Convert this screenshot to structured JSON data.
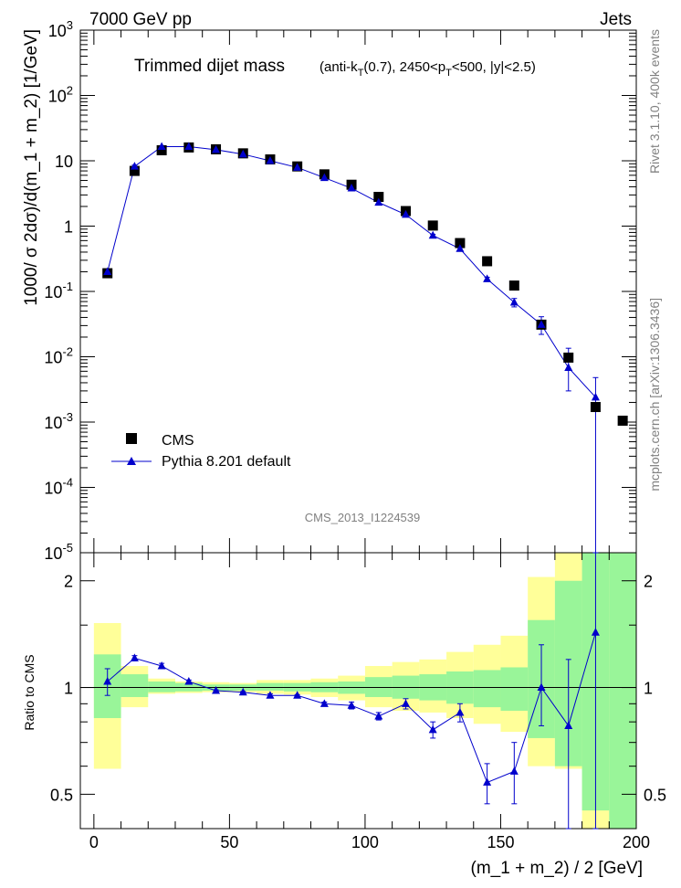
{
  "header": {
    "left": "7000 GeV pp",
    "right": "Jets"
  },
  "title": {
    "main": "Trimmed dijet mass",
    "cuts": "(anti-kT(0.7), 2450<pT<500, |y|<2.5)"
  },
  "side": {
    "rivet": "Rivet 3.1.10,  400k events",
    "mcplots": "mcplots.cern.ch [arXiv:1306.3436]"
  },
  "watermark": "CMS_2013_I1224539",
  "legend": {
    "data": "CMS",
    "mc": "Pythia 8.201 default"
  },
  "colors": {
    "mc": "#0000cc",
    "data": "#000000",
    "band_inner": "#99f599",
    "band_outer": "#ffff99"
  },
  "chart_data": [
    {
      "type": "scatter",
      "panel": "main",
      "ylabel": "1000/ σ 2dσ)/d(m_1 + m_2) [1/GeV]",
      "yscale": "log",
      "xlim": [
        -5,
        200
      ],
      "ylim": [
        1e-05,
        1000
      ],
      "y_tick_labels": [
        "10^-5",
        "10^-4",
        "10^-3",
        "10^-2",
        "10^-1",
        "1",
        "10",
        "10^2",
        "10^3"
      ],
      "x": [
        5,
        15,
        25,
        35,
        45,
        55,
        65,
        75,
        85,
        95,
        105,
        115,
        125,
        135,
        145,
        155,
        165,
        175,
        185,
        195
      ],
      "series": [
        {
          "name": "CMS",
          "values": [
            0.19,
            7.0,
            14.5,
            16.0,
            15.0,
            13.0,
            10.5,
            8.2,
            6.2,
            4.3,
            2.8,
            1.7,
            1.02,
            0.55,
            0.29,
            0.123,
            0.031,
            0.0097,
            0.0017,
            0.00105
          ]
        },
        {
          "name": "Pythia 8.201 default",
          "values": [
            0.2,
            8.2,
            16.5,
            16.5,
            14.8,
            12.6,
            10.0,
            7.9,
            5.5,
            3.8,
            2.3,
            1.5,
            0.72,
            0.45,
            0.155,
            0.068,
            0.031,
            0.0068,
            0.0024
          ],
          "err_low": [
            0.19,
            7.8,
            16.0,
            16.2,
            14.6,
            12.4,
            9.9,
            7.8,
            5.4,
            3.7,
            2.2,
            1.45,
            0.69,
            0.42,
            0.145,
            0.058,
            0.022,
            0.003,
            1e-06
          ],
          "err_high": [
            0.21,
            8.6,
            17.0,
            16.8,
            15.0,
            12.8,
            10.1,
            8.0,
            5.6,
            3.9,
            2.4,
            1.55,
            0.75,
            0.48,
            0.165,
            0.078,
            0.041,
            0.0135,
            0.0048
          ]
        }
      ]
    },
    {
      "type": "scatter",
      "panel": "ratio",
      "xlabel": "(m_1 + m_2) / 2 [GeV]",
      "ylabel": "Ratio to CMS",
      "xlim": [
        -5,
        200
      ],
      "ylim": [
        0.4,
        2.4
      ],
      "x_ticks": [
        0,
        50,
        100,
        150,
        200
      ],
      "y_ticks": [
        0.5,
        1,
        2
      ],
      "bins": [
        [
          0,
          10
        ],
        [
          10,
          20
        ],
        [
          20,
          30
        ],
        [
          30,
          40
        ],
        [
          40,
          50
        ],
        [
          50,
          60
        ],
        [
          60,
          70
        ],
        [
          70,
          80
        ],
        [
          80,
          90
        ],
        [
          90,
          100
        ],
        [
          100,
          110
        ],
        [
          110,
          120
        ],
        [
          120,
          130
        ],
        [
          130,
          140
        ],
        [
          140,
          150
        ],
        [
          150,
          160
        ],
        [
          160,
          170
        ],
        [
          170,
          180
        ],
        [
          180,
          190
        ],
        [
          190,
          200
        ]
      ],
      "band_inner": [
        [
          0.82,
          1.24
        ],
        [
          0.94,
          1.09
        ],
        [
          0.97,
          1.04
        ],
        [
          0.975,
          1.03
        ],
        [
          0.98,
          1.02
        ],
        [
          0.98,
          1.02
        ],
        [
          0.98,
          1.03
        ],
        [
          0.975,
          1.03
        ],
        [
          0.97,
          1.035
        ],
        [
          0.96,
          1.04
        ],
        [
          0.94,
          1.07
        ],
        [
          0.93,
          1.08
        ],
        [
          0.92,
          1.09
        ],
        [
          0.9,
          1.11
        ],
        [
          0.88,
          1.12
        ],
        [
          0.86,
          1.14
        ],
        [
          0.72,
          1.55
        ],
        [
          0.6,
          2.0
        ],
        [
          0.45,
          2.4
        ],
        [
          0.4,
          2.4
        ]
      ],
      "band_outer": [
        [
          0.59,
          1.52
        ],
        [
          0.88,
          1.15
        ],
        [
          0.96,
          1.06
        ],
        [
          0.965,
          1.04
        ],
        [
          0.97,
          1.035
        ],
        [
          0.97,
          1.03
        ],
        [
          0.96,
          1.05
        ],
        [
          0.955,
          1.05
        ],
        [
          0.94,
          1.06
        ],
        [
          0.92,
          1.08
        ],
        [
          0.88,
          1.15
        ],
        [
          0.86,
          1.18
        ],
        [
          0.85,
          1.2
        ],
        [
          0.82,
          1.26
        ],
        [
          0.79,
          1.32
        ],
        [
          0.75,
          1.4
        ],
        [
          0.6,
          2.05
        ],
        [
          0.59,
          2.4
        ],
        [
          0.4,
          2.4
        ],
        [
          0.4,
          2.4
        ]
      ],
      "series": [
        {
          "name": "Pythia 8.201 default",
          "x": [
            5,
            15,
            25,
            35,
            45,
            55,
            65,
            75,
            85,
            95,
            105,
            115,
            125,
            135,
            145,
            155,
            165,
            175,
            185
          ],
          "values": [
            1.04,
            1.21,
            1.15,
            1.04,
            0.98,
            0.97,
            0.95,
            0.95,
            0.9,
            0.89,
            0.83,
            0.9,
            0.76,
            0.85,
            0.54,
            0.58,
            1.0,
            0.78,
            1.43
          ],
          "err_low": [
            0.95,
            1.19,
            1.13,
            1.03,
            0.975,
            0.965,
            0.94,
            0.945,
            0.89,
            0.87,
            0.81,
            0.87,
            0.72,
            0.8,
            0.47,
            0.47,
            0.78,
            0.4,
            0.4
          ],
          "err_high": [
            1.13,
            1.23,
            1.17,
            1.05,
            0.985,
            0.975,
            0.96,
            0.955,
            0.91,
            0.91,
            0.85,
            0.93,
            0.8,
            0.9,
            0.61,
            0.7,
            1.32,
            1.2,
            2.4
          ]
        }
      ]
    }
  ]
}
